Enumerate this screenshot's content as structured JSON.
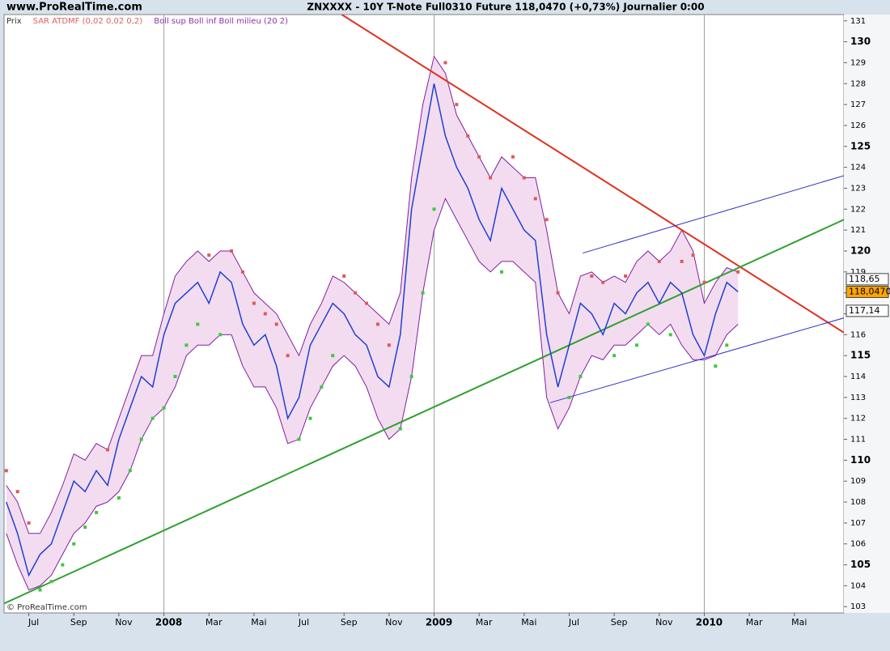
{
  "chart_data": {
    "type": "line",
    "site": "www.ProRealTime.com",
    "title": "ZNXXXX - 10Y T-Note Full0310 Future     118,0470 (+0,73%)     Journalier  0:00",
    "legend": [
      {
        "name": "Prix",
        "color": "#333333"
      },
      {
        "name": "SAR ATDMF (0,02 0,02 0,2)",
        "color": "#e06060"
      },
      {
        "name": "Boll sup Boll inf Boll milieu (20 2)",
        "color": "#9030b0"
      }
    ],
    "watermark": "© ProRealTime.com",
    "xlim": [
      -0.1,
      37.2
    ],
    "xticks": [
      {
        "value": 1,
        "label": "Jul"
      },
      {
        "value": 3,
        "label": "Sep"
      },
      {
        "value": 5,
        "label": "Nov"
      },
      {
        "value": 7,
        "label": "2008"
      },
      {
        "value": 9,
        "label": "Mar"
      },
      {
        "value": 11,
        "label": "Mai"
      },
      {
        "value": 13,
        "label": "Jul"
      },
      {
        "value": 15,
        "label": "Sep"
      },
      {
        "value": 17,
        "label": "Nov"
      },
      {
        "value": 19,
        "label": "2009"
      },
      {
        "value": 21,
        "label": "Mar"
      },
      {
        "value": 23,
        "label": "Mai"
      },
      {
        "value": 25,
        "label": "Jul"
      },
      {
        "value": 27,
        "label": "Sep"
      },
      {
        "value": 29,
        "label": "Nov"
      },
      {
        "value": 31,
        "label": "2010"
      },
      {
        "value": 33,
        "label": "Mar"
      },
      {
        "value": 35,
        "label": "Mai"
      }
    ],
    "ylim": [
      102.7,
      131.3
    ],
    "yticks": [
      103,
      104,
      105,
      106,
      107,
      108,
      109,
      110,
      111,
      112,
      113,
      114,
      115,
      116,
      117,
      118,
      119,
      120,
      121,
      122,
      123,
      124,
      125,
      126,
      127,
      128,
      129,
      130,
      131
    ],
    "x": [
      0,
      0.5,
      1,
      1.5,
      2,
      2.5,
      3,
      3.5,
      4,
      4.5,
      5,
      5.5,
      6,
      6.5,
      7,
      7.5,
      8,
      8.5,
      9,
      9.5,
      10,
      10.5,
      11,
      11.5,
      12,
      12.5,
      13,
      13.5,
      14,
      14.5,
      15,
      15.5,
      16,
      16.5,
      17,
      17.5,
      18,
      18.5,
      19,
      19.5,
      20,
      20.5,
      21,
      21.5,
      22,
      22.5,
      23,
      23.5,
      24,
      24.5,
      25,
      25.5,
      26,
      26.5,
      27,
      27.5,
      28,
      28.5,
      29,
      29.5,
      30,
      30.5,
      31,
      31.5,
      32,
      32.5
    ],
    "price": {
      "color": "#2040d0",
      "values": [
        108.0,
        106.5,
        104.5,
        105.5,
        106.0,
        107.5,
        109.0,
        108.5,
        109.5,
        108.8,
        111.0,
        112.5,
        114.0,
        113.5,
        116.0,
        117.5,
        118.0,
        118.5,
        117.5,
        119.0,
        118.5,
        116.5,
        115.5,
        116.0,
        114.5,
        112.0,
        113.0,
        115.5,
        116.5,
        117.5,
        117.0,
        116.0,
        115.5,
        114.0,
        113.5,
        116.0,
        122.0,
        125.0,
        128.0,
        125.5,
        124.0,
        123.0,
        121.5,
        120.5,
        123.0,
        122.0,
        121.0,
        120.5,
        116.0,
        113.5,
        115.5,
        117.5,
        117.0,
        116.0,
        117.5,
        117.0,
        118.0,
        118.5,
        117.5,
        118.5,
        118.0,
        116.0,
        115.0,
        117.0,
        118.5,
        118.05
      ]
    },
    "boll_upper": {
      "color": "#8020a0",
      "values": [
        108.8,
        108.0,
        106.5,
        106.5,
        107.5,
        108.8,
        110.3,
        110.0,
        110.8,
        110.5,
        112.0,
        113.5,
        115.0,
        115.0,
        117.0,
        118.8,
        119.5,
        120.0,
        119.5,
        120.0,
        120.0,
        119.0,
        118.0,
        117.5,
        117.0,
        116.0,
        115.0,
        116.5,
        117.5,
        118.8,
        118.5,
        118.0,
        117.5,
        117.0,
        116.5,
        118.0,
        123.5,
        127.0,
        129.3,
        128.5,
        126.5,
        125.5,
        124.5,
        123.5,
        124.5,
        124.0,
        123.5,
        123.5,
        121.0,
        118.0,
        117.0,
        118.8,
        119.0,
        118.5,
        118.8,
        118.5,
        119.5,
        120.0,
        119.5,
        120.0,
        121.0,
        120.0,
        117.5,
        118.5,
        119.2,
        119.0
      ]
    },
    "boll_lower": {
      "color": "#8020a0",
      "values": [
        106.5,
        105.0,
        103.8,
        104.0,
        104.5,
        105.5,
        106.5,
        107.0,
        107.8,
        108.0,
        108.5,
        109.5,
        111.0,
        112.0,
        112.5,
        113.5,
        115.0,
        115.5,
        115.5,
        116.0,
        116.0,
        114.5,
        113.5,
        113.5,
        112.5,
        110.8,
        111.0,
        112.5,
        113.5,
        114.5,
        115.0,
        114.5,
        113.5,
        112.0,
        111.0,
        111.5,
        114.0,
        118.0,
        121.0,
        122.5,
        121.5,
        120.5,
        119.5,
        119.0,
        119.5,
        119.5,
        119.0,
        118.5,
        113.0,
        111.5,
        112.5,
        114.0,
        115.0,
        114.8,
        115.5,
        115.5,
        116.0,
        116.5,
        116.0,
        116.5,
        115.5,
        114.8,
        114.8,
        115.0,
        116.0,
        116.5
      ]
    },
    "band_fill": "#f3dcf0",
    "sar": {
      "above_color": "#e05858",
      "below_color": "#40c840",
      "values": [
        109.5,
        108.5,
        107.0,
        103.8,
        104.2,
        105.0,
        106.0,
        106.8,
        107.5,
        110.5,
        108.2,
        109.5,
        111.0,
        112.0,
        112.5,
        114.0,
        115.5,
        116.5,
        119.8,
        116.0,
        120.0,
        119.0,
        117.5,
        117.0,
        116.5,
        115.0,
        111.0,
        112.0,
        113.5,
        115.0,
        118.8,
        118.0,
        117.5,
        116.5,
        115.5,
        111.5,
        114.0,
        118.0,
        122.0,
        129.0,
        127.0,
        125.5,
        124.5,
        123.5,
        119.0,
        124.5,
        123.5,
        122.5,
        121.5,
        118.0,
        113.0,
        114.0,
        118.8,
        118.5,
        115.0,
        118.8,
        115.5,
        116.5,
        119.5,
        116.0,
        119.5,
        119.8,
        118.5,
        114.5,
        115.5,
        119.0
      ]
    },
    "trend_lines": [
      {
        "color": "#e03020",
        "width": 2,
        "x": [
          14.9,
          37.2
        ],
        "values": [
          131.3,
          116.1
        ]
      },
      {
        "color": "#30a030",
        "width": 2,
        "x": [
          -0.1,
          37.2
        ],
        "values": [
          103.15,
          121.5
        ]
      },
      {
        "color": "#3030c0",
        "width": 1,
        "x": [
          25.6,
          37.2
        ],
        "values": [
          119.9,
          123.6
        ]
      },
      {
        "color": "#3030c0",
        "width": 1,
        "x": [
          24.15,
          37.2
        ],
        "values": [
          112.75,
          116.8
        ]
      }
    ],
    "price_labels": [
      {
        "value": 118.65,
        "label": "118,65",
        "fill": "#ffffff"
      },
      {
        "value": 118.047,
        "label": "118,0470",
        "fill": "#ffa500"
      },
      {
        "value": 117.14,
        "label": "117,14",
        "fill": "#ffffff"
      }
    ]
  }
}
